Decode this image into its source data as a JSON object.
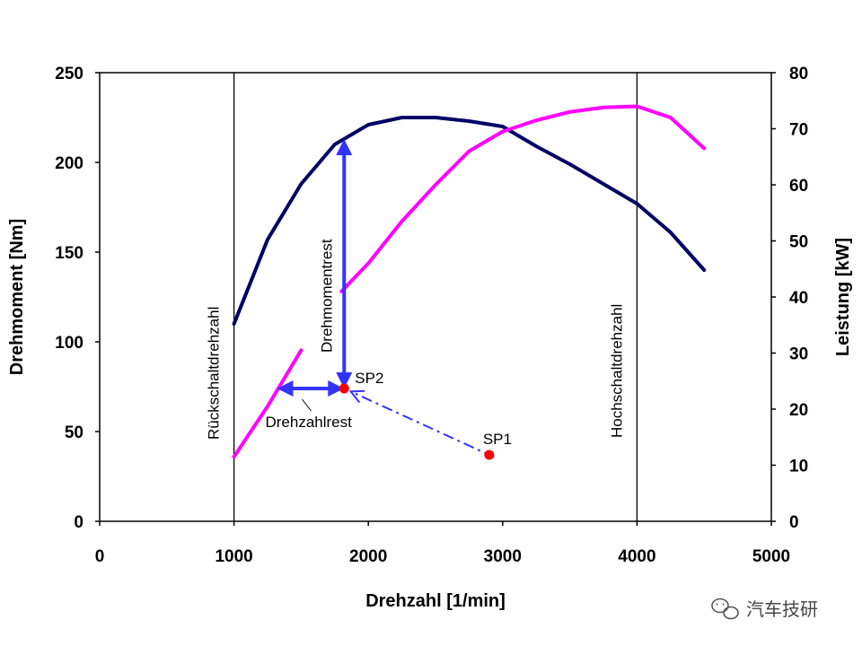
{
  "chart_data": {
    "type": "line",
    "title": "",
    "xlabel": "Drehzahl [1/min]",
    "ylabel": "Drehmoment [Nm]",
    "y2label": "Leistung [kW]",
    "xlim": [
      0,
      5000
    ],
    "ylim": [
      0,
      250
    ],
    "y2lim": [
      0,
      80
    ],
    "x_ticks": [
      "0",
      "1000",
      "2000",
      "3000",
      "4000",
      "5000"
    ],
    "y_ticks": [
      "0",
      "50",
      "100",
      "150",
      "200",
      "250"
    ],
    "y2_ticks": [
      "0",
      "10",
      "20",
      "30",
      "40",
      "50",
      "60",
      "70",
      "80"
    ],
    "grid": false,
    "series": [
      {
        "axis": "left",
        "color": "#000066",
        "points": [
          [
            1000,
            110
          ],
          [
            1250,
            157
          ],
          [
            1500,
            188
          ],
          [
            1750,
            210
          ],
          [
            2000,
            221
          ],
          [
            2250,
            225
          ],
          [
            2500,
            225
          ],
          [
            2750,
            223
          ],
          [
            3000,
            220
          ],
          [
            3250,
            209
          ],
          [
            3500,
            199
          ],
          [
            3750,
            188
          ],
          [
            4000,
            177
          ],
          [
            4250,
            161
          ],
          [
            4500,
            140
          ]
        ]
      },
      {
        "axis": "right",
        "color": "#ff00ff",
        "segments": [
          [
            [
              1000,
              11.5
            ],
            [
              1250,
              20.5
            ],
            [
              1500,
              30.5
            ]
          ],
          [
            [
              1800,
              41
            ],
            [
              2000,
              46
            ],
            [
              2250,
              53.5
            ],
            [
              2500,
              60
            ],
            [
              2750,
              66
            ],
            [
              3000,
              69.5
            ],
            [
              3250,
              71.5
            ],
            [
              3500,
              73
            ],
            [
              3750,
              73.8
            ],
            [
              4000,
              74
            ],
            [
              4250,
              72
            ],
            [
              4500,
              66.5
            ]
          ]
        ]
      }
    ],
    "vertical_lines": [
      {
        "x": 1000,
        "label": "Rückschaltdrehzahl"
      },
      {
        "x": 4000,
        "label": "Hochschaltdrehzahl"
      }
    ],
    "points": [
      {
        "label": "SP1",
        "x": 2900,
        "y": 37,
        "color": "#ff0000"
      },
      {
        "label": "SP2",
        "x": 1820,
        "y": 74,
        "color": "#ff0000"
      }
    ],
    "annotations": [
      {
        "label": "Drehmomentrest",
        "x": 1820,
        "from_y": 74,
        "to_y": 213,
        "color": "#3333ff"
      },
      {
        "label": "Drehzahlrest",
        "from_x": 1320,
        "to_x": 1820,
        "y": 74,
        "color": "#3333ff"
      }
    ],
    "watermark": "汽车技研"
  }
}
